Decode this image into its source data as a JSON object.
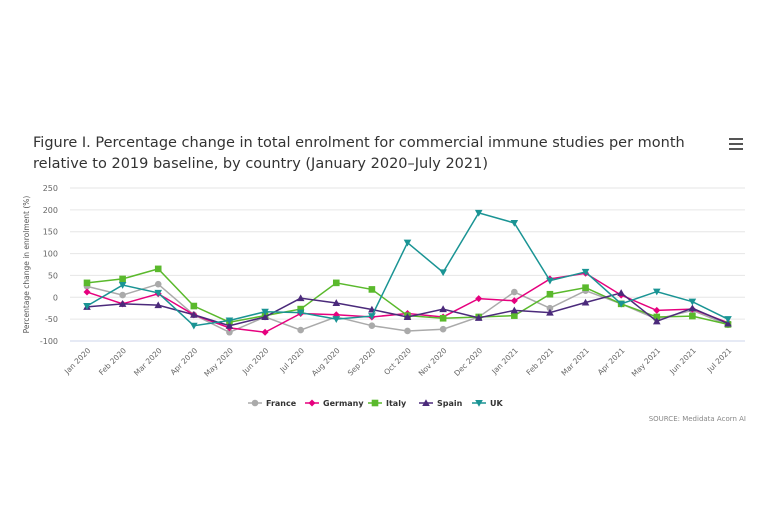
{
  "title": "Figure I. Percentage change in total enrolment for commercial immune studies per month relative to 2019 baseline, by country (January 2020–July 2021)",
  "source": "SOURCE: Medidata Acorn AI",
  "menu_icon": "hamburger-menu-icon",
  "chart_data": {
    "type": "line",
    "ylabel": "Percentage change in enrolment (%)",
    "ylim": [
      -100,
      250
    ],
    "yticks": [
      -100,
      -50,
      0,
      50,
      100,
      150,
      200,
      250
    ],
    "grid": true,
    "legend_placement": "bottom",
    "categories": [
      "Jan 2020",
      "Feb 2020",
      "Mar 2020",
      "Apr 2020",
      "May 2020",
      "Jun 2020",
      "Jul 2020",
      "Aug 2020",
      "Sep 2020",
      "Oct 2020",
      "Nov 2020",
      "Dec 2020",
      "Jan 2021",
      "Feb 2021",
      "Mar 2021",
      "Apr 2021",
      "May 2021",
      "Jun 2021",
      "Jul 2021"
    ],
    "series": [
      {
        "name": "France",
        "color": "#aaaaaa",
        "marker": "circle",
        "values": [
          25,
          5,
          30,
          -40,
          -80,
          -45,
          -75,
          -45,
          -65,
          -77,
          -73,
          -45,
          12,
          -25,
          15,
          -15,
          -50,
          -30,
          -63
        ]
      },
      {
        "name": "Germany",
        "color": "#e6007e",
        "marker": "diamond",
        "values": [
          12,
          -15,
          8,
          -40,
          -70,
          -80,
          -37,
          -40,
          -45,
          -37,
          -45,
          -3,
          -8,
          42,
          55,
          5,
          -30,
          -27,
          -58
        ]
      },
      {
        "name": "Italy",
        "color": "#5ab92c",
        "marker": "square",
        "values": [
          33,
          42,
          65,
          -20,
          -57,
          -42,
          -27,
          33,
          18,
          -42,
          -48,
          -45,
          -42,
          7,
          22,
          -15,
          -45,
          -43,
          -62
        ]
      },
      {
        "name": "Spain",
        "color": "#4b2a7b",
        "marker": "triangle",
        "values": [
          -22,
          -15,
          -18,
          -40,
          -65,
          -45,
          -2,
          -13,
          -28,
          -45,
          -27,
          -47,
          -30,
          -35,
          -12,
          10,
          -55,
          -25,
          -60
        ]
      },
      {
        "name": "UK",
        "color": "#1a9494",
        "marker": "triangle-down",
        "values": [
          -20,
          28,
          10,
          -65,
          -53,
          -33,
          -35,
          -50,
          -43,
          125,
          57,
          193,
          170,
          38,
          58,
          -15,
          13,
          -10,
          -50
        ]
      }
    ]
  }
}
